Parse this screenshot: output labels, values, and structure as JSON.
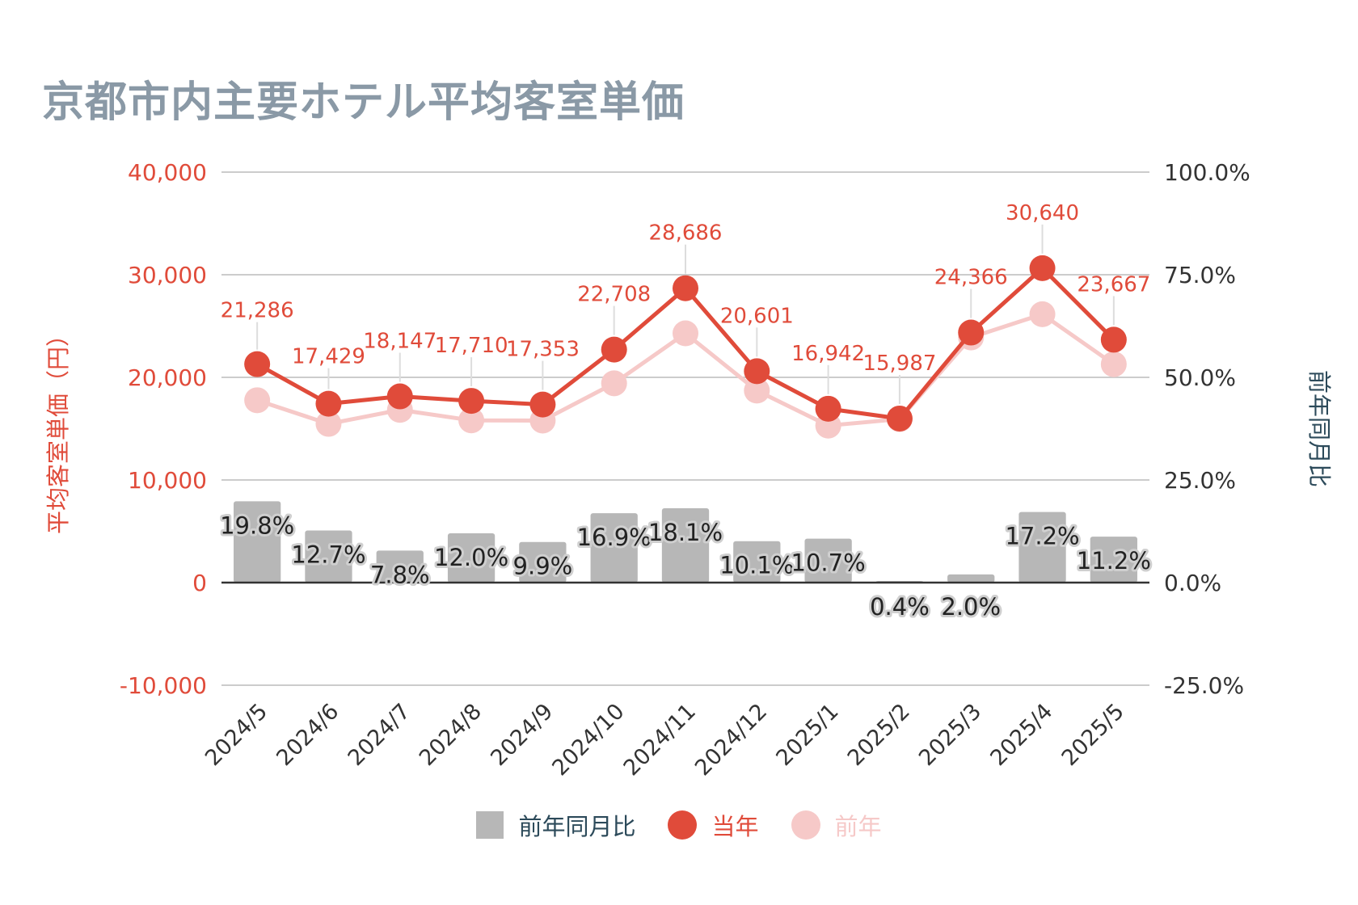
{
  "title": "京都市内主要ホテル平均客室単価",
  "colors": {
    "current": "#e04b3a",
    "previous": "#f6c9c8",
    "bar": "#b7b7b7",
    "title": "#8a99a6",
    "right_axis": "#2c4a5a"
  },
  "legend": {
    "bar": "前年同月比",
    "current": "当年",
    "previous": "前年"
  },
  "chart_data": {
    "type": "bar",
    "title": "京都市内主要ホテル平均客室単価",
    "categories": [
      "2024/5",
      "2024/6",
      "2024/7",
      "2024/8",
      "2024/9",
      "2024/10",
      "2024/11",
      "2024/12",
      "2025/1",
      "2025/2",
      "2025/3",
      "2025/4",
      "2025/5"
    ],
    "ylabel": "平均客室単価（円）",
    "ylabel_right": "前年同月比",
    "ylim": [
      -10000,
      40000
    ],
    "ylim_right": [
      -25.0,
      100.0
    ],
    "yticks": [
      "-10,000",
      "0",
      "10,000",
      "20,000",
      "30,000",
      "40,000"
    ],
    "yticks_right": [
      "-25.0%",
      "0.0%",
      "25.0%",
      "50.0%",
      "75.0%",
      "100.0%"
    ],
    "grid": true,
    "legend_position": "bottom",
    "series": [
      {
        "name": "前年同月比",
        "type": "bar",
        "axis": "right",
        "values": [
          19.8,
          12.7,
          7.8,
          12.0,
          9.9,
          16.9,
          18.1,
          10.1,
          10.7,
          0.4,
          2.0,
          17.2,
          11.2
        ],
        "labels": [
          "19.8%",
          "12.7%",
          "7.8%",
          "12.0%",
          "9.9%",
          "16.9%",
          "18.1%",
          "10.1%",
          "10.7%",
          "0.4%",
          "2.0%",
          "17.2%",
          "11.2%"
        ]
      },
      {
        "name": "当年",
        "type": "line",
        "axis": "left",
        "values": [
          21286,
          17429,
          18147,
          17710,
          17353,
          22708,
          28686,
          20601,
          16942,
          15987,
          24366,
          30640,
          23667
        ],
        "labels": [
          "21,286",
          "17,429",
          "18,147",
          "17,710",
          "17,353",
          "22,708",
          "28,686",
          "20,601",
          "16,942",
          "15,987",
          "24,366",
          "30,640",
          "23,667"
        ]
      },
      {
        "name": "前年",
        "type": "line",
        "axis": "left",
        "values": [
          17770,
          15470,
          16830,
          15810,
          15790,
          19420,
          24290,
          18710,
          15300,
          15930,
          23890,
          26150,
          21280
        ]
      }
    ]
  }
}
